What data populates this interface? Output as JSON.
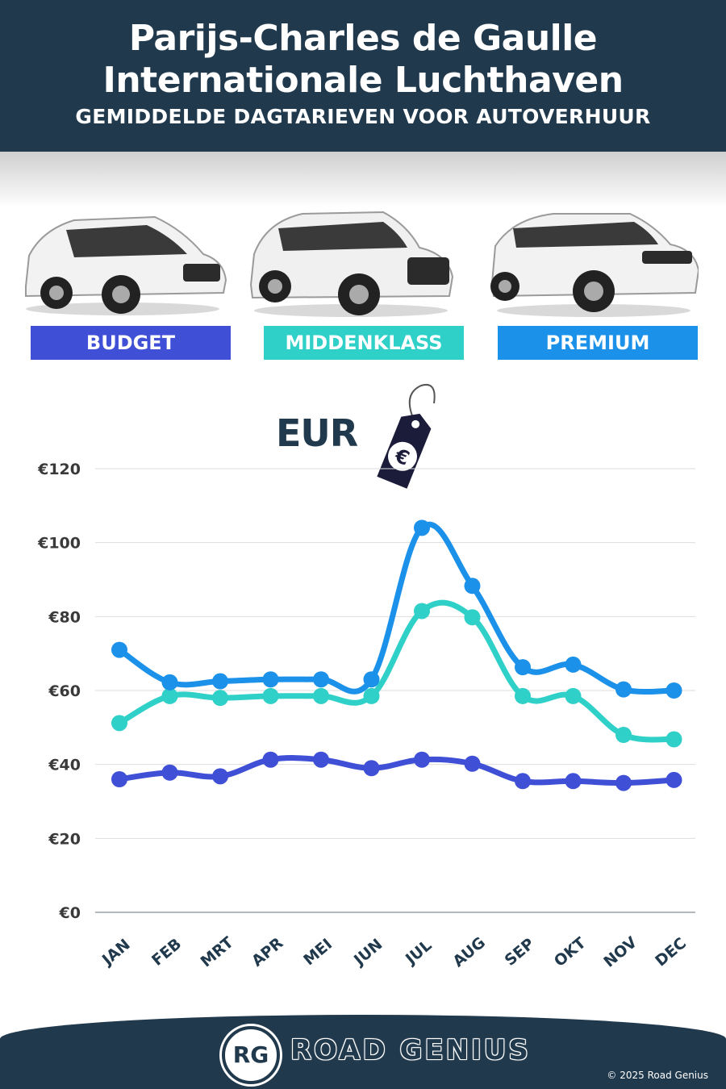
{
  "header": {
    "title_line1": "Parijs-Charles de Gaulle",
    "title_line2": "Internationale Luchthaven",
    "subtitle": "GEMIDDELDE DAGTARIEVEN VOOR AUTOVERHUUR"
  },
  "categories_bar": [
    {
      "label": "BUDGET",
      "color": "#3f4fd6"
    },
    {
      "label": "MIDDENKLASS",
      "color": "#2ed0c8"
    },
    {
      "label": "PREMIUM",
      "color": "#1b91ea"
    }
  ],
  "currency_label": "EUR",
  "price_tag_icon": "euro-icon",
  "chart_data": {
    "type": "line",
    "categories": [
      "JAN",
      "FEB",
      "MRT",
      "APR",
      "MEI",
      "JUN",
      "JUL",
      "AUG",
      "SEP",
      "OKT",
      "NOV",
      "DEC"
    ],
    "series": [
      {
        "name": "BUDGET",
        "color": "#3f4fd6",
        "values": [
          36,
          37.8,
          36.8,
          41.3,
          41.3,
          39,
          41.3,
          40.2,
          35.5,
          35.5,
          35,
          35.8
        ]
      },
      {
        "name": "MIDDENKLASS",
        "color": "#2ed0c8",
        "values": [
          51.2,
          58.5,
          58,
          58.5,
          58.5,
          58.5,
          81.5,
          79.8,
          58.5,
          58.5,
          48,
          46.8
        ]
      },
      {
        "name": "PREMIUM",
        "color": "#1b91ea",
        "values": [
          71,
          62.2,
          62.5,
          63,
          63,
          63,
          104,
          88.3,
          66.3,
          67,
          60.3,
          60
        ]
      }
    ],
    "y_ticks": [
      "€0",
      "€20",
      "€40",
      "€60",
      "€80",
      "€100",
      "€120"
    ],
    "ylim": [
      0,
      120
    ],
    "grid": true
  },
  "footer": {
    "logo_text": "RG",
    "brand": "ROAD GENIUS",
    "copyright": "© 2025 Road Genius"
  }
}
